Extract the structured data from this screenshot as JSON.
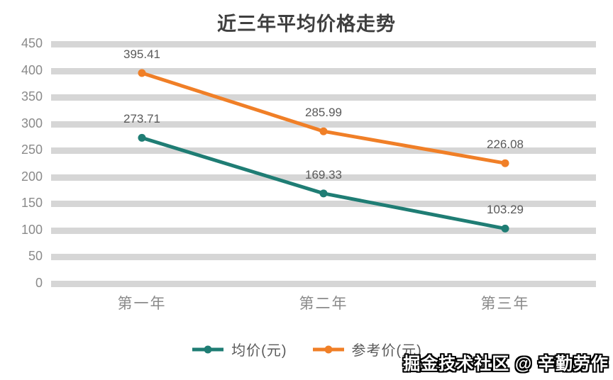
{
  "chart_data": {
    "type": "line",
    "title": "近三年平均价格走势",
    "categories": [
      "第一年",
      "第二年",
      "第三年"
    ],
    "series": [
      {
        "name": "均价(元)",
        "color": "#1F7D74",
        "values": [
          273.71,
          169.33,
          103.29
        ]
      },
      {
        "name": "参考价(元)",
        "color": "#F07F27",
        "values": [
          395.41,
          285.99,
          226.08
        ]
      }
    ],
    "ylim": [
      0,
      450
    ],
    "yticks": [
      450,
      400,
      350,
      300,
      250,
      200,
      150,
      100,
      50,
      0
    ],
    "grid": true,
    "data_labels": true,
    "legend_position": "bottom"
  },
  "watermark": {
    "text": "掘金技术社区 @ 辛勤劳作"
  },
  "style": {
    "grid_color": "#d6d6d6",
    "title_color": "#3f3f3f",
    "axis_label_color": "#8a8a8a",
    "data_label_color": "#595959"
  }
}
